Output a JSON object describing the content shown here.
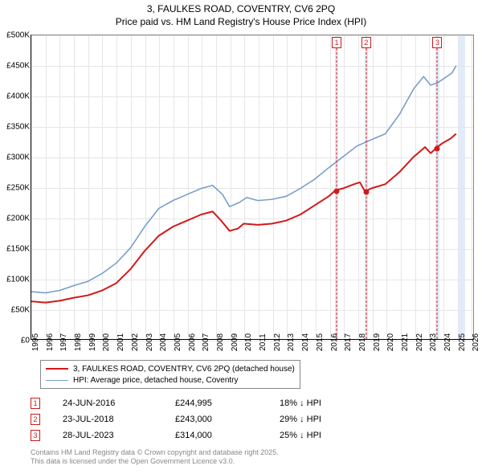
{
  "title": {
    "line1": "3, FAULKES ROAD, COVENTRY, CV6 2PQ",
    "line2": "Price paid vs. HM Land Registry's House Price Index (HPI)"
  },
  "chart": {
    "type": "line",
    "x_domain": [
      1995,
      2026.2
    ],
    "y_domain": [
      0,
      500000
    ],
    "x_ticks": [
      1995,
      1996,
      1997,
      1998,
      1999,
      2000,
      2001,
      2002,
      2003,
      2004,
      2005,
      2006,
      2007,
      2008,
      2009,
      2010,
      2011,
      2012,
      2013,
      2014,
      2015,
      2016,
      2017,
      2018,
      2019,
      2020,
      2021,
      2022,
      2023,
      2024,
      2025,
      2026
    ],
    "y_ticks": [
      0,
      50000,
      100000,
      150000,
      200000,
      250000,
      300000,
      350000,
      400000,
      450000,
      500000
    ],
    "y_tick_labels": [
      "£0",
      "£50K",
      "£100K",
      "£150K",
      "£200K",
      "£250K",
      "£300K",
      "£350K",
      "£400K",
      "£450K",
      "£500K"
    ],
    "grid_color": "#e6e6e6",
    "background_color": "#ffffff",
    "series": [
      {
        "name": "price_paid",
        "label": "3, FAULKES ROAD, COVENTRY, CV6 2PQ (detached house)",
        "color": "#d11919",
        "width": 2,
        "data": [
          [
            1995.0,
            62000
          ],
          [
            1996.0,
            60000
          ],
          [
            1997.0,
            63000
          ],
          [
            1998.0,
            68000
          ],
          [
            1999.0,
            72000
          ],
          [
            2000.0,
            80000
          ],
          [
            2001.0,
            92000
          ],
          [
            2002.0,
            115000
          ],
          [
            2003.0,
            145000
          ],
          [
            2004.0,
            170000
          ],
          [
            2005.0,
            185000
          ],
          [
            2006.0,
            195000
          ],
          [
            2007.0,
            205000
          ],
          [
            2007.8,
            210000
          ],
          [
            2008.4,
            195000
          ],
          [
            2009.0,
            178000
          ],
          [
            2009.6,
            182000
          ],
          [
            2010.0,
            190000
          ],
          [
            2011.0,
            188000
          ],
          [
            2012.0,
            190000
          ],
          [
            2013.0,
            195000
          ],
          [
            2014.0,
            205000
          ],
          [
            2015.0,
            220000
          ],
          [
            2016.0,
            235000
          ],
          [
            2016.48,
            244995
          ],
          [
            2017.0,
            248000
          ],
          [
            2017.8,
            255000
          ],
          [
            2018.2,
            258000
          ],
          [
            2018.56,
            243000
          ],
          [
            2019.0,
            248000
          ],
          [
            2020.0,
            255000
          ],
          [
            2021.0,
            275000
          ],
          [
            2022.0,
            300000
          ],
          [
            2022.8,
            316000
          ],
          [
            2023.2,
            306000
          ],
          [
            2023.57,
            314000
          ],
          [
            2024.0,
            322000
          ],
          [
            2024.6,
            330000
          ],
          [
            2025.0,
            338000
          ]
        ]
      },
      {
        "name": "hpi",
        "label": "HPI: Average price, detached house, Coventry",
        "color": "#7a9ec9",
        "width": 1.6,
        "data": [
          [
            1995.0,
            78000
          ],
          [
            1996.0,
            76000
          ],
          [
            1997.0,
            80000
          ],
          [
            1998.0,
            88000
          ],
          [
            1999.0,
            95000
          ],
          [
            2000.0,
            108000
          ],
          [
            2001.0,
            125000
          ],
          [
            2002.0,
            150000
          ],
          [
            2003.0,
            185000
          ],
          [
            2004.0,
            215000
          ],
          [
            2005.0,
            228000
          ],
          [
            2006.0,
            238000
          ],
          [
            2007.0,
            248000
          ],
          [
            2007.8,
            253000
          ],
          [
            2008.5,
            238000
          ],
          [
            2009.0,
            218000
          ],
          [
            2009.7,
            225000
          ],
          [
            2010.2,
            233000
          ],
          [
            2011.0,
            228000
          ],
          [
            2012.0,
            230000
          ],
          [
            2013.0,
            235000
          ],
          [
            2014.0,
            248000
          ],
          [
            2015.0,
            263000
          ],
          [
            2016.0,
            282000
          ],
          [
            2017.0,
            300000
          ],
          [
            2018.0,
            318000
          ],
          [
            2019.0,
            328000
          ],
          [
            2020.0,
            338000
          ],
          [
            2021.0,
            370000
          ],
          [
            2022.0,
            412000
          ],
          [
            2022.7,
            432000
          ],
          [
            2023.2,
            418000
          ],
          [
            2023.7,
            422000
          ],
          [
            2024.2,
            430000
          ],
          [
            2024.7,
            438000
          ],
          [
            2025.0,
            450000
          ]
        ]
      }
    ],
    "sale_markers": [
      {
        "n": "1",
        "x": 2016.48,
        "y": 244995,
        "color": "#d11919",
        "band": [
          2016.35,
          2016.62
        ]
      },
      {
        "n": "2",
        "x": 2018.56,
        "y": 243000,
        "color": "#d11919",
        "band": [
          2018.43,
          2018.7
        ]
      },
      {
        "n": "3",
        "x": 2023.57,
        "y": 314000,
        "color": "#d11919",
        "band": [
          2023.44,
          2023.71
        ]
      }
    ],
    "extra_band": [
      2025.0,
      2025.5
    ],
    "band_color": "#dbe9f8"
  },
  "legend": {
    "rows": [
      {
        "color": "#d11919",
        "width": 2,
        "label": "3, FAULKES ROAD, COVENTRY, CV6 2PQ (detached house)"
      },
      {
        "color": "#7a9ec9",
        "width": 1.6,
        "label": "HPI: Average price, detached house, Coventry"
      }
    ]
  },
  "sales_table": {
    "rows": [
      {
        "n": "1",
        "date": "24-JUN-2016",
        "price": "£244,995",
        "delta": "18% ↓ HPI"
      },
      {
        "n": "2",
        "date": "23-JUL-2018",
        "price": "£243,000",
        "delta": "29% ↓ HPI"
      },
      {
        "n": "3",
        "date": "28-JUL-2023",
        "price": "£314,000",
        "delta": "25% ↓ HPI"
      }
    ]
  },
  "footer": {
    "line1": "Contains HM Land Registry data © Crown copyright and database right 2025.",
    "line2": "This data is licensed under the Open Government Licence v3.0."
  }
}
